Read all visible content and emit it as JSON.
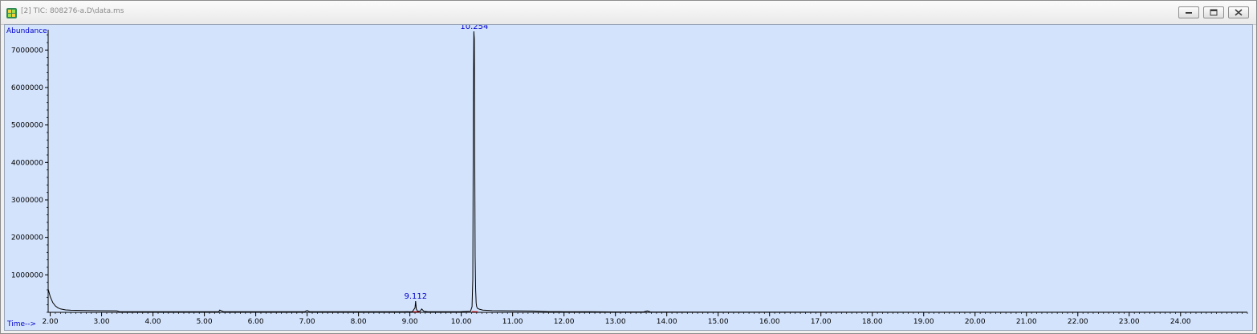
{
  "window": {
    "title": "[2] TIC: 808276-a.D\\data.ms",
    "icon": "chromatogram-icon"
  },
  "chart_data": {
    "type": "line",
    "ylabel": "Abundance",
    "xlabel": "Time-->",
    "xlim": [
      1.96,
      25.3
    ],
    "ylim": [
      0,
      7500000
    ],
    "x_ticks": [
      2.0,
      3.0,
      4.0,
      5.0,
      6.0,
      7.0,
      8.0,
      9.0,
      10.0,
      11.0,
      12.0,
      13.0,
      14.0,
      15.0,
      16.0,
      17.0,
      18.0,
      19.0,
      20.0,
      21.0,
      22.0,
      23.0,
      24.0
    ],
    "x_tick_labels": [
      "2.00",
      "3.00",
      "4.00",
      "5.00",
      "6.00",
      "7.00",
      "8.00",
      "9.00",
      "10.00",
      "11.00",
      "12.00",
      "13.00",
      "14.00",
      "15.00",
      "16.00",
      "17.00",
      "18.00",
      "19.00",
      "20.00",
      "21.00",
      "22.00",
      "23.00",
      "24.00"
    ],
    "y_ticks": [
      1000000,
      2000000,
      3000000,
      4000000,
      5000000,
      6000000,
      7000000
    ],
    "y_tick_labels": [
      "1000000",
      "2000000",
      "3000000",
      "4000000",
      "5000000",
      "6000000",
      "7000000"
    ],
    "series": [
      {
        "x": [
          1.96,
          2.0,
          2.05,
          2.1,
          2.15,
          2.2,
          2.3,
          2.4,
          2.6,
          2.8,
          3.0,
          3.3,
          3.35,
          4.0,
          5.0,
          5.28,
          5.3,
          5.33,
          5.38,
          5.45,
          6.0,
          6.95,
          7.0,
          7.05,
          7.5,
          8.0,
          8.9,
          9.05,
          9.1,
          9.112,
          9.125,
          9.15,
          9.2,
          9.23,
          9.27,
          9.35,
          9.6,
          10.0,
          10.18,
          10.21,
          10.225,
          10.235,
          10.245,
          10.254,
          10.262,
          10.27,
          10.28,
          10.29,
          10.3,
          10.32,
          10.36,
          10.42,
          10.6,
          11.0,
          11.4,
          11.7,
          11.9,
          12.0,
          12.5,
          13.0,
          13.55,
          13.62,
          13.68,
          13.75,
          14.0,
          15.0,
          20.0,
          25.3
        ],
        "y": [
          620000,
          420000,
          260000,
          170000,
          120000,
          90000,
          65000,
          55000,
          50000,
          45000,
          42000,
          40000,
          15000,
          15000,
          15000,
          15000,
          60000,
          40000,
          15000,
          15000,
          15000,
          15000,
          50000,
          15000,
          15000,
          15000,
          15000,
          20000,
          120000,
          300000,
          90000,
          30000,
          30000,
          90000,
          30000,
          15000,
          15000,
          20000,
          30000,
          150000,
          900000,
          5350000,
          7500000,
          7300000,
          4350000,
          1500000,
          600000,
          250000,
          150000,
          100000,
          80000,
          60000,
          45000,
          40000,
          35000,
          20000,
          20000,
          15000,
          15000,
          10000,
          10000,
          40000,
          10000,
          8000,
          8000,
          5000,
          3000,
          3000
        ]
      }
    ],
    "baselines": [
      {
        "x": [
          9.05,
          9.18
        ],
        "y": [
          15000,
          15000
        ],
        "color": "#cc0000"
      },
      {
        "x": [
          10.21,
          10.32
        ],
        "y": [
          20000,
          15000
        ],
        "color": "#cc0000"
      }
    ],
    "peak_labels": [
      {
        "text": "10.254",
        "x": 10.254,
        "y": 7500000
      },
      {
        "text": "9.112",
        "x": 9.112,
        "y": 300000
      }
    ],
    "colors": {
      "plot_background": "#d3e3fc",
      "trace": "#000000",
      "axis_title": "#0000cc",
      "peak_label": "#0000cc",
      "baseline": "#cc0000"
    }
  }
}
